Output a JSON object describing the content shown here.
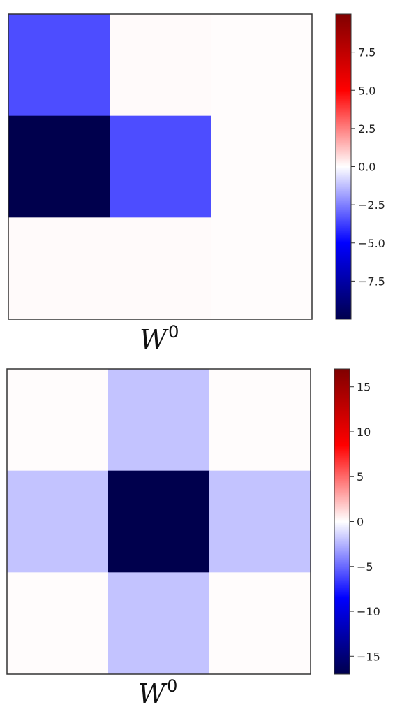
{
  "chart_data": [
    {
      "type": "heatmap",
      "colormap": "seismic",
      "rows": 3,
      "cols": 3,
      "values": [
        [
          -3.5,
          0.1,
          0.05
        ],
        [
          -10.0,
          -3.5,
          0.05
        ],
        [
          0.1,
          0.1,
          0.05
        ]
      ],
      "vmin": -10.0,
      "vmax": 10.0,
      "xlabel": "W",
      "xlabel_sup": "0",
      "colorbar_ticks": [
        7.5,
        5.0,
        2.5,
        0.0,
        -2.5,
        -5.0,
        -7.5
      ],
      "colorbar_tick_labels": [
        "7.5",
        "5.0",
        "2.5",
        "0.0",
        "−2.5",
        "−5.0",
        "−7.5"
      ],
      "colorbar_placement": "right",
      "grid": false
    },
    {
      "type": "heatmap",
      "colormap": "seismic",
      "rows": 3,
      "cols": 3,
      "values": [
        [
          0.1,
          -2.0,
          0.1
        ],
        [
          -2.0,
          -17.0,
          -2.0
        ],
        [
          0.1,
          -2.0,
          0.1
        ]
      ],
      "vmin": -17.0,
      "vmax": 17.0,
      "xlabel": "W",
      "xlabel_sup": "0",
      "colorbar_ticks": [
        15,
        10,
        5,
        0,
        -5,
        -10,
        -15
      ],
      "colorbar_tick_labels": [
        "15",
        "10",
        "5",
        "0",
        "−5",
        "−10",
        "−15"
      ],
      "colorbar_placement": "right",
      "grid": false
    }
  ]
}
